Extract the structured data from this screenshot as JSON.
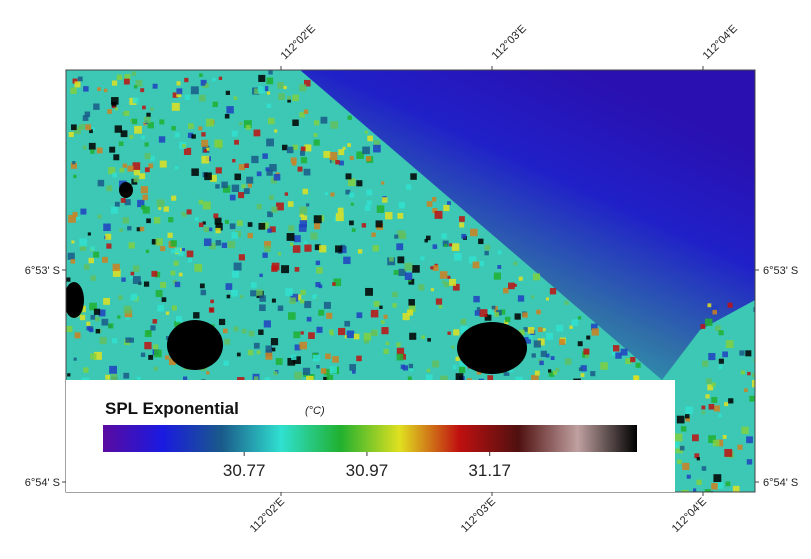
{
  "map": {
    "top_labels": [
      "112°02'E",
      "112°03'E",
      "112°04'E"
    ],
    "bottom_labels": [
      "112°02'E",
      "112°03'E",
      "112°04'E"
    ],
    "left_labels": [
      "6°53' S",
      "6°54' S"
    ],
    "right_labels": [
      "6°53' S",
      "6°54' S"
    ]
  },
  "legend": {
    "title": "SPL Exponential",
    "unit": "(°C)",
    "lim": [
      30.54,
      31.41
    ],
    "ticks": [
      30.77,
      30.97,
      31.17
    ],
    "colors": [
      "#5a0aa0",
      "#1a1ae0",
      "#1a5a8a",
      "#30e0d0",
      "#20b030",
      "#e0e020",
      "#c01010",
      "#501010",
      "#c0a0a0",
      "#000000"
    ]
  }
}
